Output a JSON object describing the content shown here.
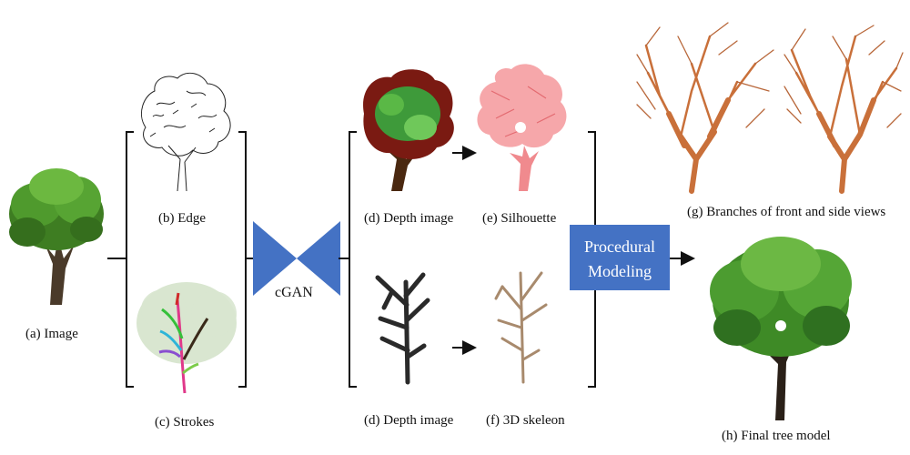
{
  "captions": {
    "image": "(a) Image",
    "edge": "(b) Edge",
    "strokes": "(c) Strokes",
    "depth_top": "(d) Depth image",
    "silhouette": "(e) Silhouette",
    "depth_bottom": "(d) Depth image",
    "skeleton": "(f) 3D skeleon",
    "branches": "(g) Branches of front and side views",
    "final": "(h)  Final tree model"
  },
  "network": {
    "label": "cGAN"
  },
  "procedural": {
    "line1": "Procedural",
    "line2": "Modeling"
  },
  "colors": {
    "cgan": "#4472c4",
    "box": "#4472c4",
    "branch": "#c9703a",
    "foliage": "#3e8a26",
    "silhouette": "#f08a8e",
    "skeleton": "#a88a6d"
  }
}
